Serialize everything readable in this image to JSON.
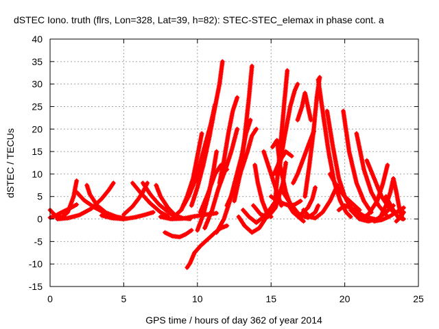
{
  "chart_data": {
    "type": "scatter",
    "title": "dSTEC Iono. truth (flrs, Lon=328, Lat=39, h=82): STEC-STEC_elemax in phase cont. a",
    "xlabel": "GPS time / hours of day 362 of year 2014",
    "ylabel": "dSTEC  / TECUs",
    "xlim": [
      0,
      25
    ],
    "ylim": [
      -15,
      40
    ],
    "xticks": [
      0,
      5,
      10,
      15,
      20,
      25
    ],
    "yticks": [
      -15,
      -10,
      -5,
      0,
      5,
      10,
      15,
      20,
      25,
      30,
      35,
      40
    ],
    "xtick_labels": [
      "0",
      "5",
      "10",
      "15",
      "20",
      "25"
    ],
    "ytick_labels": [
      "-15",
      "-10",
      "-5",
      "0",
      "5",
      "10",
      "15",
      "20",
      "25",
      "30",
      "35",
      "40"
    ],
    "grid": true,
    "marker": "plus",
    "color": "#ff0000",
    "series": [
      {
        "x": [
          0.0,
          0.4,
          0.8,
          1.2,
          1.6,
          1.8
        ],
        "y": [
          2.0,
          0.6,
          0.4,
          1.5,
          5.0,
          8.5
        ]
      },
      {
        "x": [
          0.0,
          0.4,
          0.8,
          1.3,
          1.8
        ],
        "y": [
          0.3,
          0.8,
          1.5,
          2.3,
          3.2
        ]
      },
      {
        "x": [
          0.5,
          1.2,
          2.0,
          2.8,
          3.5,
          4.0,
          4.3
        ],
        "y": [
          0.0,
          0.2,
          0.9,
          2.3,
          4.5,
          6.5,
          8.0
        ]
      },
      {
        "x": [
          1.8,
          2.3,
          3.0,
          3.8,
          4.6,
          5.0
        ],
        "y": [
          6.0,
          4.2,
          2.6,
          1.2,
          0.3,
          0.0
        ]
      },
      {
        "x": [
          2.5,
          2.7,
          3.2,
          3.8,
          4.5,
          5.2
        ],
        "y": [
          7.5,
          5.5,
          3.0,
          1.4,
          0.5,
          0.1
        ]
      },
      {
        "x": [
          3.5,
          4.2,
          5.0,
          5.8,
          6.5,
          7.0
        ],
        "y": [
          0.8,
          0.2,
          0.0,
          0.4,
          1.0,
          1.5
        ]
      },
      {
        "x": [
          5.0,
          5.6,
          6.0,
          6.3,
          6.6
        ],
        "y": [
          1.0,
          2.8,
          4.5,
          6.0,
          8.0
        ]
      },
      {
        "x": [
          5.6,
          6.1,
          6.8,
          7.5,
          8.0
        ],
        "y": [
          8.0,
          6.0,
          3.5,
          1.5,
          0.6
        ]
      },
      {
        "x": [
          6.3,
          6.8,
          7.4,
          8.0,
          8.5
        ],
        "y": [
          8.0,
          5.5,
          3.2,
          1.6,
          0.5
        ]
      },
      {
        "x": [
          7.2,
          7.5,
          8.0,
          8.5,
          9.0,
          9.5
        ],
        "y": [
          7.5,
          5.0,
          2.5,
          0.8,
          0.2,
          0.0
        ]
      },
      {
        "x": [
          7.5,
          8.2,
          9.0,
          9.8,
          10.6,
          11.3
        ],
        "y": [
          0.5,
          0.0,
          0.1,
          0.6,
          1.0,
          1.3
        ]
      },
      {
        "x": [
          7.8,
          8.3,
          8.8,
          9.2,
          9.6
        ],
        "y": [
          -3.0,
          -3.8,
          -4.0,
          -3.4,
          -2.5
        ]
      },
      {
        "x": [
          8.4,
          8.9,
          9.3,
          9.7,
          10.0,
          10.3
        ],
        "y": [
          0.5,
          2.0,
          5.0,
          9.0,
          14.0,
          19.0
        ]
      },
      {
        "x": [
          8.9,
          9.4,
          9.9,
          10.4,
          10.9,
          11.2
        ],
        "y": [
          2.0,
          5.0,
          9.0,
          15.0,
          21.0,
          25.5
        ]
      },
      {
        "x": [
          9.3,
          9.5,
          9.8,
          10.2,
          10.7,
          11.2,
          11.6,
          12.0
        ],
        "y": [
          -10.8,
          -9.8,
          -7.5,
          -6.0,
          -4.5,
          -3.0,
          -2.0,
          -1.5
        ]
      },
      {
        "x": [
          9.6,
          10.0,
          10.4,
          10.8,
          11.2,
          11.5,
          11.7
        ],
        "y": [
          3.0,
          7.0,
          12.0,
          18.0,
          25.0,
          30.0,
          35.0
        ]
      },
      {
        "x": [
          10.0,
          10.4,
          10.8,
          11.1,
          11.3
        ],
        "y": [
          -2.5,
          1.0,
          6.0,
          11.0,
          15.0
        ]
      },
      {
        "x": [
          10.2,
          10.7,
          11.2,
          11.6,
          12.0
        ],
        "y": [
          1.5,
          5.5,
          10.0,
          12.0,
          11.0
        ]
      },
      {
        "x": [
          10.5,
          11.0,
          11.4,
          11.9,
          12.3,
          12.7
        ],
        "y": [
          -2.0,
          2.0,
          6.5,
          11.0,
          15.0,
          20.0
        ]
      },
      {
        "x": [
          11.3,
          11.8,
          12.2,
          12.6,
          13.0,
          13.3,
          13.6
        ],
        "y": [
          -3.0,
          0.0,
          4.0,
          9.0,
          14.0,
          19.0,
          22.0
        ]
      },
      {
        "x": [
          11.5,
          11.8,
          12.1,
          12.4,
          12.7
        ],
        "y": [
          8.0,
          13.0,
          19.0,
          24.0,
          27.0
        ]
      },
      {
        "x": [
          12.0,
          12.5,
          13.0,
          13.4,
          13.7,
          14.0
        ],
        "y": [
          3.0,
          6.5,
          11.0,
          15.0,
          18.5,
          20.0
        ]
      },
      {
        "x": [
          12.5,
          12.9,
          13.2,
          13.5,
          13.7
        ],
        "y": [
          4.0,
          10.0,
          18.0,
          27.0,
          34.0
        ]
      },
      {
        "x": [
          12.8,
          13.2,
          13.7,
          14.2,
          14.6,
          15.0
        ],
        "y": [
          0.5,
          -1.5,
          -3.0,
          -2.0,
          0.0,
          1.5
        ]
      },
      {
        "x": [
          13.1,
          13.5,
          14.0,
          14.5,
          15.0,
          15.5
        ],
        "y": [
          2.0,
          0.5,
          -0.8,
          0.5,
          2.5,
          5.0
        ]
      },
      {
        "x": [
          13.8,
          14.3,
          14.8,
          15.3,
          15.8,
          16.0
        ],
        "y": [
          3.0,
          1.0,
          0.5,
          2.5,
          8.0,
          12.5
        ]
      },
      {
        "x": [
          13.9,
          14.1,
          14.4,
          14.7,
          15.0
        ],
        "y": [
          12.0,
          8.0,
          4.0,
          1.5,
          0.5
        ]
      },
      {
        "x": [
          14.5,
          14.8,
          15.1,
          15.4,
          15.7
        ],
        "y": [
          15.0,
          12.0,
          9.0,
          6.0,
          3.0
        ]
      },
      {
        "x": [
          15.0,
          15.4,
          15.8,
          16.2,
          16.6,
          17.0
        ],
        "y": [
          5.0,
          4.0,
          3.5,
          3.0,
          3.2,
          4.0
        ]
      },
      {
        "x": [
          15.1,
          15.4,
          15.6,
          16.0,
          16.5,
          17.2
        ],
        "y": [
          16.0,
          17.5,
          12.0,
          6.0,
          1.5,
          -0.5
        ]
      },
      {
        "x": [
          15.2,
          15.6,
          16.0,
          16.4
        ],
        "y": [
          10.0,
          13.0,
          15.0,
          14.0
        ]
      },
      {
        "x": [
          15.3,
          15.6,
          15.9,
          16.1
        ],
        "y": [
          5.0,
          15.0,
          26.0,
          33.0
        ]
      },
      {
        "x": [
          15.5,
          15.9,
          16.3,
          16.6,
          16.8
        ],
        "y": [
          10.0,
          18.0,
          25.0,
          28.5,
          30.0
        ]
      },
      {
        "x": [
          15.8,
          16.3,
          16.9,
          17.5,
          18.0,
          18.2
        ],
        "y": [
          6.0,
          3.5,
          1.0,
          0.3,
          1.5,
          3.0
        ]
      },
      {
        "x": [
          16.2,
          16.5,
          17.0,
          17.5,
          17.8,
          18.0
        ],
        "y": [
          3.0,
          1.5,
          1.0,
          2.5,
          4.5,
          7.0
        ]
      },
      {
        "x": [
          16.5,
          16.8,
          17.2,
          17.6,
          17.9
        ],
        "y": [
          8.0,
          10.0,
          13.5,
          17.0,
          19.5
        ]
      },
      {
        "x": [
          16.8,
          17.1,
          17.3,
          17.5,
          17.7
        ],
        "y": [
          22.0,
          25.0,
          28.0,
          25.0,
          22.0
        ]
      },
      {
        "x": [
          17.2,
          17.6,
          18.0,
          18.5,
          19.0,
          19.5
        ],
        "y": [
          2.0,
          0.5,
          0.2,
          1.5,
          4.0,
          7.5
        ]
      },
      {
        "x": [
          17.3,
          17.6,
          17.9,
          18.1,
          18.3
        ],
        "y": [
          5.0,
          12.0,
          20.0,
          27.0,
          31.5
        ]
      },
      {
        "x": [
          18.2,
          18.5,
          18.9,
          19.3,
          19.7,
          20.1,
          20.4
        ],
        "y": [
          31.0,
          24.0,
          15.0,
          8.0,
          4.0,
          1.5,
          0.5
        ]
      },
      {
        "x": [
          18.8,
          19.2,
          19.6,
          20.0,
          20.5,
          21.0,
          21.5
        ],
        "y": [
          24.0,
          16.0,
          9.0,
          5.0,
          2.0,
          0.5,
          0.0
        ]
      },
      {
        "x": [
          19.0,
          19.5,
          20.0,
          20.5,
          21.0
        ],
        "y": [
          10.0,
          7.0,
          5.0,
          3.5,
          2.0
        ]
      },
      {
        "x": [
          19.6,
          20.0,
          20.4,
          20.9,
          21.4,
          22.0
        ],
        "y": [
          2.0,
          3.0,
          2.5,
          1.5,
          0.5,
          0.0
        ]
      },
      {
        "x": [
          19.9,
          20.3,
          20.8,
          21.3,
          21.8
        ],
        "y": [
          24.0,
          15.0,
          8.0,
          4.0,
          1.5
        ]
      },
      {
        "x": [
          20.4,
          21.0,
          21.6,
          22.2,
          22.8,
          23.3
        ],
        "y": [
          2.0,
          0.0,
          -0.5,
          0.0,
          1.5,
          3.0
        ]
      },
      {
        "x": [
          20.8,
          21.3,
          21.8,
          22.3,
          22.8
        ],
        "y": [
          19.0,
          11.0,
          6.0,
          3.0,
          1.0
        ]
      },
      {
        "x": [
          21.0,
          21.6,
          22.2,
          22.6,
          22.9
        ],
        "y": [
          0.0,
          1.0,
          4.0,
          8.0,
          12.0
        ]
      },
      {
        "x": [
          21.5,
          22.0,
          22.5,
          23.0,
          23.5
        ],
        "y": [
          13.0,
          9.0,
          5.0,
          2.5,
          1.0
        ]
      },
      {
        "x": [
          22.0,
          22.5,
          23.0,
          23.5,
          24.0
        ],
        "y": [
          -0.5,
          -0.2,
          0.5,
          1.5,
          2.5
        ]
      },
      {
        "x": [
          22.5,
          22.8,
          23.1,
          23.3
        ],
        "y": [
          1.0,
          3.0,
          6.0,
          9.0
        ]
      },
      {
        "x": [
          23.3,
          23.5,
          23.7,
          23.9
        ],
        "y": [
          9.0,
          6.0,
          2.5,
          0.0
        ]
      },
      {
        "x": [
          22.8,
          23.2,
          23.6,
          24.0
        ],
        "y": [
          5.0,
          2.5,
          0.5,
          0.0
        ]
      },
      {
        "x": [
          23.5,
          23.8,
          24.0
        ],
        "y": [
          -0.5,
          0.5,
          1.5
        ]
      }
    ]
  }
}
